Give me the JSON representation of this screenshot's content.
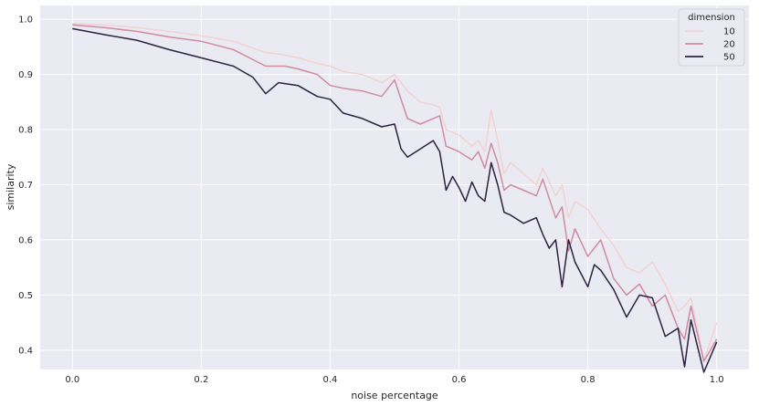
{
  "chart_data": {
    "type": "line",
    "xlabel": "noise percentage",
    "ylabel": "similarity",
    "xlim": [
      -0.05,
      1.05
    ],
    "ylim": [
      0.365,
      1.025
    ],
    "xticks": [
      "0.0",
      "0.2",
      "0.4",
      "0.6",
      "0.8",
      "1.0"
    ],
    "yticks": [
      "0.4",
      "0.5",
      "0.6",
      "0.7",
      "0.8",
      "0.9",
      "1.0"
    ],
    "grid": true,
    "legend": {
      "title": "dimension",
      "position": "top-right"
    },
    "series": [
      {
        "name": "10",
        "color": "#f1d3d2",
        "x": [
          0.0,
          0.05,
          0.1,
          0.15,
          0.2,
          0.25,
          0.3,
          0.33,
          0.35,
          0.38,
          0.4,
          0.42,
          0.45,
          0.48,
          0.5,
          0.52,
          0.54,
          0.56,
          0.57,
          0.58,
          0.6,
          0.62,
          0.63,
          0.64,
          0.65,
          0.66,
          0.67,
          0.68,
          0.7,
          0.72,
          0.73,
          0.75,
          0.76,
          0.77,
          0.78,
          0.8,
          0.82,
          0.84,
          0.86,
          0.88,
          0.9,
          0.92,
          0.94,
          0.95,
          0.96,
          0.98,
          1.0
        ],
        "values": [
          0.992,
          0.99,
          0.985,
          0.978,
          0.97,
          0.96,
          0.94,
          0.935,
          0.93,
          0.92,
          0.915,
          0.905,
          0.9,
          0.885,
          0.9,
          0.87,
          0.85,
          0.845,
          0.84,
          0.8,
          0.79,
          0.77,
          0.78,
          0.76,
          0.835,
          0.78,
          0.72,
          0.74,
          0.72,
          0.7,
          0.73,
          0.68,
          0.7,
          0.64,
          0.67,
          0.655,
          0.62,
          0.59,
          0.55,
          0.54,
          0.56,
          0.52,
          0.47,
          0.48,
          0.495,
          0.38,
          0.45
        ]
      },
      {
        "name": "20",
        "color": "#d08ba0",
        "x": [
          0.0,
          0.05,
          0.1,
          0.15,
          0.2,
          0.25,
          0.3,
          0.33,
          0.35,
          0.38,
          0.4,
          0.42,
          0.45,
          0.48,
          0.5,
          0.52,
          0.54,
          0.56,
          0.57,
          0.58,
          0.6,
          0.62,
          0.63,
          0.64,
          0.65,
          0.66,
          0.67,
          0.68,
          0.7,
          0.72,
          0.73,
          0.75,
          0.76,
          0.77,
          0.78,
          0.8,
          0.82,
          0.84,
          0.86,
          0.88,
          0.9,
          0.92,
          0.94,
          0.95,
          0.96,
          0.98,
          1.0
        ],
        "values": [
          0.99,
          0.985,
          0.978,
          0.968,
          0.96,
          0.945,
          0.915,
          0.915,
          0.91,
          0.9,
          0.88,
          0.875,
          0.87,
          0.86,
          0.89,
          0.82,
          0.81,
          0.82,
          0.825,
          0.77,
          0.76,
          0.745,
          0.76,
          0.73,
          0.775,
          0.74,
          0.69,
          0.7,
          0.69,
          0.68,
          0.71,
          0.64,
          0.66,
          0.58,
          0.62,
          0.57,
          0.6,
          0.53,
          0.5,
          0.52,
          0.48,
          0.5,
          0.44,
          0.42,
          0.48,
          0.38,
          0.42
        ]
      },
      {
        "name": "50",
        "color": "#2c213f",
        "x": [
          0.0,
          0.05,
          0.1,
          0.15,
          0.2,
          0.25,
          0.28,
          0.3,
          0.32,
          0.35,
          0.38,
          0.4,
          0.42,
          0.45,
          0.48,
          0.5,
          0.51,
          0.52,
          0.54,
          0.56,
          0.57,
          0.58,
          0.59,
          0.6,
          0.61,
          0.62,
          0.63,
          0.64,
          0.65,
          0.66,
          0.67,
          0.68,
          0.7,
          0.72,
          0.73,
          0.74,
          0.75,
          0.76,
          0.77,
          0.78,
          0.8,
          0.81,
          0.82,
          0.84,
          0.86,
          0.88,
          0.9,
          0.92,
          0.94,
          0.95,
          0.96,
          0.98,
          1.0
        ],
        "values": [
          0.983,
          0.972,
          0.962,
          0.945,
          0.93,
          0.915,
          0.895,
          0.865,
          0.885,
          0.88,
          0.86,
          0.855,
          0.83,
          0.82,
          0.805,
          0.81,
          0.765,
          0.75,
          0.765,
          0.78,
          0.76,
          0.69,
          0.715,
          0.695,
          0.67,
          0.705,
          0.68,
          0.67,
          0.74,
          0.7,
          0.65,
          0.645,
          0.63,
          0.64,
          0.61,
          0.585,
          0.6,
          0.515,
          0.6,
          0.56,
          0.515,
          0.555,
          0.545,
          0.51,
          0.46,
          0.5,
          0.495,
          0.425,
          0.44,
          0.37,
          0.455,
          0.36,
          0.415
        ]
      }
    ]
  }
}
